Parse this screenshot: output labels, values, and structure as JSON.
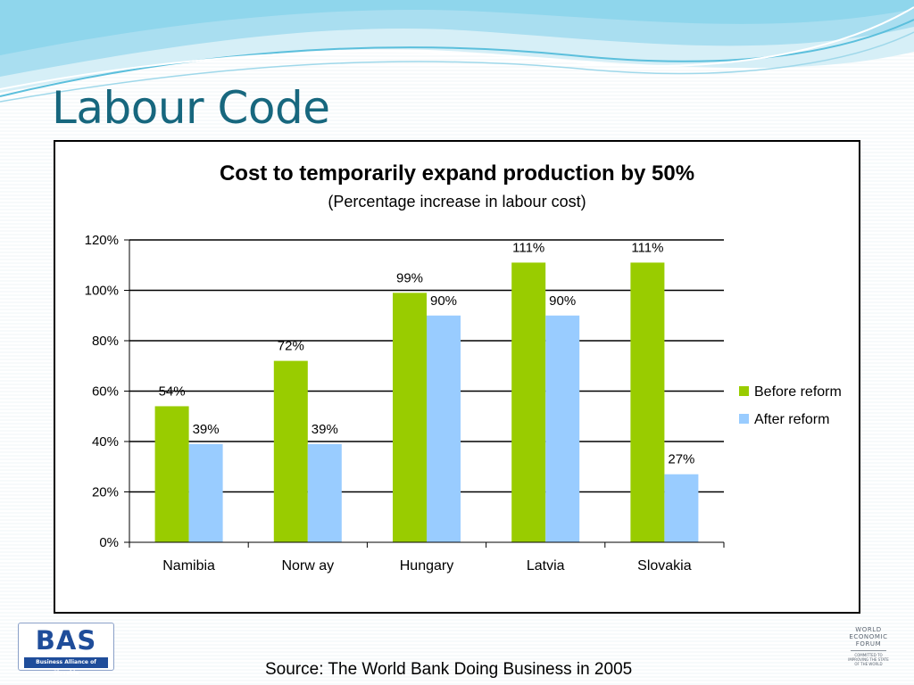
{
  "slide": {
    "title": "Labour Code",
    "source": "Source: The World Bank Doing Business in 2005"
  },
  "logos": {
    "bas_mark": "BAS",
    "bas_tagline": "Business Alliance of Slovakia",
    "wef_lines": [
      "WORLD",
      "ECONOMIC",
      "FORUM"
    ],
    "wef_tagline": [
      "COMMITTED TO",
      "IMPROVING THE STATE",
      "OF THE WORLD"
    ]
  },
  "colors": {
    "title": "#17677e",
    "before_reform": "#99cc00",
    "after_reform": "#99ccff",
    "wave_light": "#bfe6f2",
    "wave_mid": "#7fd0e6",
    "bas_blue": "#1f4d9a"
  },
  "chart_data": {
    "type": "bar",
    "title": "Cost to temporarily expand production by 50%",
    "subtitle": "(Percentage increase in labour cost)",
    "categories": [
      "Namibia",
      "Norw ay",
      "Hungary",
      "Latvia",
      "Slovakia"
    ],
    "series": [
      {
        "name": "Before reform",
        "color": "#99cc00",
        "values": [
          54,
          72,
          99,
          111,
          111
        ],
        "labels": [
          "54%",
          "72%",
          "99%",
          "111%",
          "111%"
        ]
      },
      {
        "name": "After reform",
        "color": "#99ccff",
        "values": [
          39,
          39,
          90,
          90,
          27
        ],
        "labels": [
          "39%",
          "39%",
          "90%",
          "90%",
          "27%"
        ]
      }
    ],
    "yticks": [
      "0%",
      "20%",
      "40%",
      "60%",
      "80%",
      "100%",
      "120%"
    ],
    "ylim": [
      0,
      120
    ],
    "ystep": 20,
    "grid": true,
    "legend_position": "right"
  }
}
